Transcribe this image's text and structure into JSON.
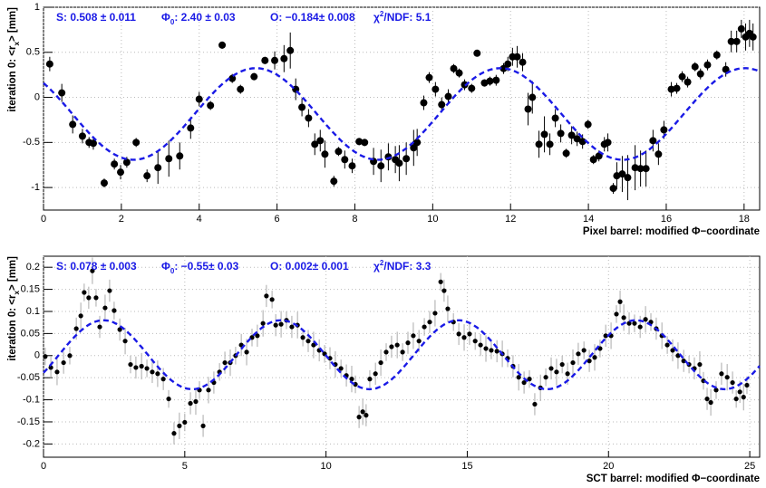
{
  "chart_data": [
    {
      "type": "scatter",
      "xlabel": "Pixel barrel: modified Φ−coordinate",
      "ylabel": {
        "text": "iteration 0: <r",
        "sub": "x",
        "rest": "> [mm]"
      },
      "stats": [
        {
          "text": "S:  0.508 ± 0.011"
        },
        {
          "text": "Φ",
          "sub": "0",
          "rest": ": 2.40 ± 0.03"
        },
        {
          "text": "O: −0.184± 0.008"
        },
        {
          "text": "χ",
          "sup": "2",
          "rest": "/NDF: 5.1"
        }
      ],
      "fit": {
        "amplitude": 0.508,
        "phase": 2.4,
        "offset": -0.184,
        "color": "#1a1ae6"
      },
      "xlim": [
        0,
        18.4
      ],
      "ylim": [
        -1.25,
        1
      ],
      "xticks": [
        0,
        2,
        4,
        6,
        8,
        10,
        12,
        14,
        16,
        18
      ],
      "yticks": [
        -1,
        -0.5,
        0,
        0.5,
        1
      ],
      "grid": true,
      "x": [
        0.16,
        0.47,
        0.75,
        1.0,
        1.17,
        1.28,
        1.56,
        1.82,
        1.98,
        2.14,
        2.38,
        2.66,
        2.94,
        3.22,
        3.5,
        3.78,
        4.0,
        4.29,
        4.59,
        4.85,
        5.06,
        5.41,
        5.69,
        5.94,
        6.18,
        6.34,
        6.48,
        6.64,
        6.81,
        6.97,
        7.11,
        7.23,
        7.46,
        7.58,
        7.74,
        7.93,
        8.11,
        8.25,
        8.48,
        8.67,
        8.86,
        9.04,
        9.14,
        9.32,
        9.51,
        9.6,
        9.77,
        9.91,
        10.07,
        10.23,
        10.4,
        10.54,
        10.68,
        10.82,
        11.0,
        11.14,
        11.33,
        11.47,
        11.63,
        11.82,
        11.93,
        12.05,
        12.17,
        12.31,
        12.45,
        12.56,
        12.73,
        12.87,
        13.01,
        13.15,
        13.29,
        13.43,
        13.57,
        13.71,
        13.85,
        13.99,
        14.13,
        14.27,
        14.41,
        14.5,
        14.64,
        14.73,
        14.87,
        15.01,
        15.2,
        15.34,
        15.48,
        15.66,
        15.8,
        15.94,
        16.13,
        16.27,
        16.41,
        16.55,
        16.74,
        16.88,
        17.06,
        17.3,
        17.53,
        17.67,
        17.81,
        17.93,
        18.04,
        18.14,
        18.23
      ],
      "series": [
        {
          "color": "#000000",
          "error_color": "#000000",
          "marker_size": 4,
          "values": [
            0.37,
            0.05,
            -0.3,
            -0.43,
            -0.5,
            -0.51,
            -0.95,
            -0.74,
            -0.83,
            -0.72,
            -0.5,
            -0.87,
            -0.78,
            -0.68,
            -0.65,
            -0.34,
            -0.02,
            -0.09,
            0.58,
            0.21,
            0.09,
            0.23,
            0.41,
            0.41,
            0.43,
            0.52,
            0.09,
            -0.11,
            -0.23,
            -0.52,
            -0.48,
            -0.63,
            -0.93,
            -0.6,
            -0.69,
            -0.76,
            -0.49,
            -0.5,
            -0.71,
            -0.76,
            -0.66,
            -0.69,
            -0.73,
            -0.68,
            -0.56,
            -0.5,
            -0.06,
            0.22,
            0.09,
            -0.08,
            0.01,
            0.32,
            0.27,
            0.14,
            0.1,
            0.49,
            0.16,
            0.18,
            0.19,
            0.32,
            0.37,
            0.45,
            0.45,
            0.39,
            -0.13,
            0,
            -0.52,
            -0.41,
            -0.52,
            -0.23,
            -0.4,
            -0.62,
            -0.42,
            -0.46,
            -0.49,
            -0.3,
            -0.69,
            -0.65,
            -0.52,
            -0.5,
            -1.01,
            -0.87,
            -0.85,
            -0.89,
            -0.78,
            -0.79,
            -0.79,
            -0.48,
            -0.63,
            -0.36,
            0.09,
            0.1,
            0.23,
            0.17,
            0.34,
            0.26,
            0.36,
            0.47,
            0.31,
            0.62,
            0.62,
            0.76,
            0.67,
            0.71,
            0.67
          ],
          "errors": [
            0.08,
            0.1,
            0.1,
            0.08,
            0.06,
            0.07,
            0.05,
            0.06,
            0.08,
            0.06,
            0.05,
            0.07,
            0.18,
            0.2,
            0.15,
            0.12,
            0.08,
            0.05,
            0.04,
            0.05,
            0.05,
            0.04,
            0.04,
            0.1,
            0.15,
            0.2,
            0.12,
            0.1,
            0.1,
            0.12,
            0.12,
            0.15,
            0.06,
            0.05,
            0.1,
            0.08,
            0.04,
            0.04,
            0.15,
            0.18,
            0.15,
            0.15,
            0.2,
            0.18,
            0.2,
            0.15,
            0.08,
            0.06,
            0.08,
            0.08,
            0.08,
            0.05,
            0.05,
            0.06,
            0.05,
            0.03,
            0.04,
            0.05,
            0.06,
            0.06,
            0.08,
            0.1,
            0.12,
            0.1,
            0.18,
            0.18,
            0.15,
            0.2,
            0.12,
            0.1,
            0.1,
            0.05,
            0.1,
            0.08,
            0.08,
            0.05,
            0.05,
            0.06,
            0.08,
            0.1,
            0.06,
            0.15,
            0.2,
            0.25,
            0.25,
            0.2,
            0.2,
            0.12,
            0.12,
            0.1,
            0.08,
            0.06,
            0.06,
            0.06,
            0.05,
            0.06,
            0.06,
            0.05,
            0.08,
            0.12,
            0.12,
            0.1,
            0.15,
            0.15,
            0.15
          ]
        }
      ]
    },
    {
      "type": "scatter",
      "xlabel": "SCT barrel: modified Φ−coordinate",
      "ylabel": {
        "text": "iteration 0: <r",
        "sub": "x",
        "rest": "> [mm]"
      },
      "stats": [
        {
          "text": "S:  0.078 ± 0.003"
        },
        {
          "text": "Φ",
          "sub": "0",
          "rest": ": −0.55± 0.03"
        },
        {
          "text": "O: 0.002± 0.001"
        },
        {
          "text": "χ",
          "sup": "2",
          "rest": "/NDF: 3.3"
        }
      ],
      "fit": {
        "amplitude": 0.078,
        "phase": -0.55,
        "offset": 0.002,
        "color": "#1a1ae6"
      },
      "xlim": [
        0,
        25.35
      ],
      "ylim": [
        -0.23,
        0.225
      ],
      "xticks": [
        0,
        5,
        10,
        15,
        20,
        25
      ],
      "yticks": [
        -0.2,
        -0.15,
        -0.1,
        -0.05,
        0,
        0.05,
        0.1,
        0.15,
        0.2
      ],
      "grid": true,
      "x": [
        0.06,
        0.26,
        0.48,
        0.71,
        0.93,
        1.16,
        1.32,
        1.44,
        1.6,
        1.73,
        1.86,
        1.99,
        2.18,
        2.34,
        2.5,
        2.7,
        2.89,
        3.08,
        3.27,
        3.47,
        3.66,
        3.85,
        4.04,
        4.24,
        4.43,
        4.62,
        4.81,
        5.0,
        5.2,
        5.39,
        5.52,
        5.65,
        5.84,
        6.03,
        6.23,
        6.42,
        6.61,
        6.8,
        7.0,
        7.19,
        7.38,
        7.57,
        7.77,
        7.89,
        8.09,
        8.22,
        8.41,
        8.6,
        8.79,
        8.99,
        9.18,
        9.37,
        9.56,
        9.76,
        9.95,
        10.14,
        10.33,
        10.53,
        10.72,
        10.91,
        11.04,
        11.17,
        11.3,
        11.42,
        11.55,
        11.75,
        11.94,
        12.13,
        12.32,
        12.52,
        12.71,
        12.9,
        13.09,
        13.29,
        13.48,
        13.67,
        13.86,
        14.06,
        14.18,
        14.31,
        14.51,
        14.7,
        14.89,
        15.08,
        15.28,
        15.47,
        15.66,
        15.85,
        16.05,
        16.24,
        16.43,
        16.62,
        16.82,
        17.01,
        17.2,
        17.39,
        17.59,
        17.78,
        17.97,
        18.16,
        18.36,
        18.55,
        18.74,
        18.93,
        19.13,
        19.32,
        19.51,
        19.7,
        19.9,
        20.09,
        20.28,
        20.41,
        20.54,
        20.73,
        20.92,
        21.12,
        21.31,
        21.5,
        21.69,
        21.89,
        22.08,
        22.27,
        22.46,
        22.66,
        22.85,
        23.04,
        23.23,
        23.36,
        23.49,
        23.62,
        23.81,
        24.0,
        24.2,
        24.39,
        24.52,
        24.65,
        24.78,
        24.9
      ],
      "series": [
        {
          "color": "#000000",
          "error_color": "#aaaaaa",
          "marker_size": 2.6,
          "values": [
            -0.002,
            -0.027,
            -0.037,
            -0.016,
            0,
            0.061,
            0.09,
            0.143,
            0.131,
            0.192,
            0.131,
            0.065,
            0.108,
            0.147,
            0.102,
            0.059,
            0.033,
            -0.02,
            -0.027,
            -0.024,
            -0.029,
            -0.037,
            -0.041,
            -0.053,
            -0.098,
            -0.176,
            -0.159,
            -0.151,
            -0.108,
            -0.104,
            -0.078,
            -0.159,
            -0.078,
            -0.061,
            -0.037,
            -0.016,
            -0.016,
            0,
            0.024,
            0.008,
            0.041,
            0.045,
            0.073,
            0.135,
            0.127,
            0.069,
            0.071,
            0.08,
            0.065,
            0.069,
            0.041,
            0.033,
            0.024,
            0.012,
            0.004,
            -0.006,
            -0.02,
            -0.029,
            -0.045,
            -0.053,
            -0.065,
            -0.139,
            -0.127,
            -0.135,
            -0.053,
            -0.041,
            -0.016,
            0.008,
            0.02,
            0.024,
            0.008,
            0.029,
            0.045,
            0.033,
            0.065,
            0.076,
            0.096,
            0.167,
            0.147,
            0.106,
            0.076,
            0.049,
            0.041,
            0.049,
            0.033,
            0.024,
            0.016,
            0.012,
            0.01,
            0.004,
            -0.006,
            -0.024,
            -0.049,
            -0.061,
            -0.053,
            -0.11,
            -0.073,
            -0.049,
            -0.029,
            -0.037,
            -0.02,
            -0.041,
            -0.016,
            0.004,
            0.012,
            -0.012,
            -0.004,
            0.016,
            0.045,
            0.045,
            0.094,
            0.122,
            0.086,
            0.073,
            0.073,
            0.065,
            0.082,
            0.076,
            0.061,
            0.045,
            0.024,
            0.012,
            0,
            -0.012,
            -0.02,
            -0.029,
            -0.02,
            -0.057,
            -0.098,
            -0.106,
            -0.078,
            -0.041,
            -0.049,
            -0.061,
            -0.098,
            -0.082,
            -0.094,
            -0.067
          ],
          "errors": [
            0.02,
            0.025,
            0.03,
            0.025,
            0.02,
            0.025,
            0.03,
            0.02,
            0.025,
            0.03,
            0.02,
            0.025,
            0.03,
            0.025,
            0.02,
            0.025,
            0.03,
            0.02,
            0.025,
            0.03,
            0.02,
            0.025,
            0.03,
            0.025,
            0.02,
            0.025,
            0.03,
            0.02,
            0.025,
            0.03,
            0.02,
            0.025,
            0.03,
            0.025,
            0.02,
            0.025,
            0.03,
            0.02,
            0.025,
            0.03,
            0.02,
            0.025,
            0.03,
            0.025,
            0.02,
            0.025,
            0.03,
            0.02,
            0.025,
            0.03,
            0.02,
            0.025,
            0.03,
            0.025,
            0.02,
            0.025,
            0.03,
            0.02,
            0.025,
            0.03,
            0.02,
            0.025,
            0.03,
            0.025,
            0.02,
            0.025,
            0.03,
            0.02,
            0.025,
            0.03,
            0.02,
            0.025,
            0.03,
            0.025,
            0.02,
            0.025,
            0.03,
            0.02,
            0.025,
            0.03,
            0.02,
            0.025,
            0.03,
            0.025,
            0.02,
            0.025,
            0.03,
            0.02,
            0.025,
            0.03,
            0.02,
            0.025,
            0.03,
            0.025,
            0.02,
            0.025,
            0.03,
            0.02,
            0.025,
            0.03,
            0.02,
            0.025,
            0.03,
            0.025,
            0.02,
            0.025,
            0.03,
            0.02,
            0.025,
            0.03,
            0.02,
            0.025,
            0.03,
            0.025,
            0.02,
            0.025,
            0.03,
            0.02,
            0.025,
            0.03,
            0.02,
            0.025,
            0.03,
            0.025,
            0.02,
            0.025,
            0.03,
            0.02,
            0.025,
            0.03,
            0.02,
            0.025,
            0.03,
            0.025,
            0.02,
            0.025,
            0.03,
            0.02
          ]
        }
      ]
    }
  ]
}
